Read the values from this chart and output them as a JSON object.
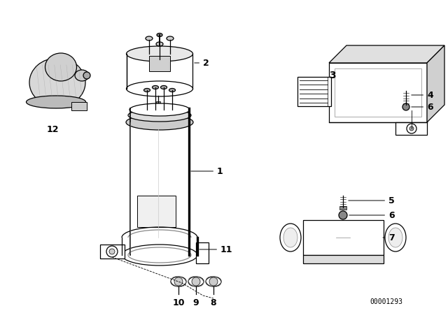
{
  "background_color": "#ffffff",
  "line_color": "#000000",
  "text_color": "#000000",
  "diagram_id": "00001293",
  "figsize": [
    6.4,
    4.48
  ],
  "dpi": 100
}
